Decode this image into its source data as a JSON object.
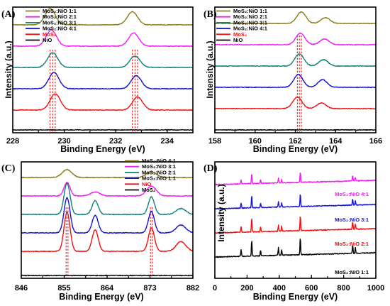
{
  "colors": {
    "olive": "#8B7D1A",
    "magenta": "#F01EF0",
    "teal": "#12807A",
    "blue": "#1414D2",
    "red": "#F01010",
    "black": "#000000",
    "refline": "#E00000"
  },
  "chart_data": [
    {
      "panel": "(A)",
      "type": "line",
      "xlabel": "Binding Energy (eV)",
      "ylabel": "Intensity (a.u.)",
      "xlim": [
        228,
        235
      ],
      "xticks": [
        228,
        230,
        232,
        234
      ],
      "legend_position": "top-left",
      "series": [
        {
          "name": "MoS2:NiO 1:1",
          "color": "olive",
          "peaks": [
            {
              "center": 229.45,
              "height": 1.0
            },
            {
              "center": 232.65,
              "height": 0.8
            }
          ]
        },
        {
          "name": "MoS2:NiO 2:1",
          "color": "magenta",
          "peaks": [
            {
              "center": 229.5,
              "height": 1.0
            },
            {
              "center": 232.7,
              "height": 0.8
            }
          ]
        },
        {
          "name": "MoS2:NiO 3:1",
          "color": "teal",
          "peaks": [
            {
              "center": 229.55,
              "height": 0.9
            },
            {
              "center": 232.75,
              "height": 0.7
            }
          ]
        },
        {
          "name": "MoS2:NiO 4:1",
          "color": "blue",
          "peaks": [
            {
              "center": 229.6,
              "height": 1.0
            },
            {
              "center": 232.8,
              "height": 0.8
            }
          ]
        },
        {
          "name": "MoS2",
          "color": "red",
          "peaks": [
            {
              "center": 229.65,
              "height": 1.0
            },
            {
              "center": 232.85,
              "height": 0.8
            }
          ]
        },
        {
          "name": "NiO",
          "color": "black",
          "peaks": []
        }
      ],
      "ref_lines": [
        229.45,
        229.55,
        229.65,
        232.65,
        232.75,
        232.85
      ]
    },
    {
      "panel": "(B)",
      "type": "line",
      "xlabel": "Binding Energy (eV)",
      "ylabel": "Intensity (a.u.)",
      "xlim": [
        158,
        166
      ],
      "xticks": [
        158,
        160,
        162,
        164,
        166
      ],
      "legend_position": "top-left",
      "series": [
        {
          "name": "MoS2:NiO 1:1",
          "color": "olive",
          "peaks": [
            {
              "center": 162.3,
              "height": 0.9
            },
            {
              "center": 163.5,
              "height": 0.45
            }
          ]
        },
        {
          "name": "MoS2:NiO 2:1",
          "color": "magenta",
          "peaks": [
            {
              "center": 162.25,
              "height": 0.9
            },
            {
              "center": 163.45,
              "height": 0.45
            }
          ]
        },
        {
          "name": "MoS2:NiO 3:1",
          "color": "teal",
          "peaks": [
            {
              "center": 162.2,
              "height": 0.95
            },
            {
              "center": 163.4,
              "height": 0.5
            }
          ]
        },
        {
          "name": "MoS2:NiO 4:1",
          "color": "blue",
          "peaks": [
            {
              "center": 162.15,
              "height": 1.0
            },
            {
              "center": 163.35,
              "height": 0.6
            }
          ]
        },
        {
          "name": "MoS2",
          "color": "red",
          "peaks": [
            {
              "center": 162.1,
              "height": 0.9
            },
            {
              "center": 163.3,
              "height": 0.45
            }
          ]
        },
        {
          "name": "NiO",
          "color": "black",
          "peaks": []
        }
      ],
      "ref_lines": [
        162.1,
        162.2,
        162.3
      ]
    },
    {
      "panel": "(C)",
      "type": "line",
      "xlabel": "Binding Energy (eV)",
      "ylabel": "",
      "xlim": [
        846,
        882
      ],
      "xticks": [
        846,
        855,
        864,
        873,
        882
      ],
      "legend_position": "top-right",
      "series": [
        {
          "name": "MoS2:NiO 4:1",
          "color": "olive",
          "peaks": [
            {
              "center": 855.6,
              "height": 0.2
            },
            {
              "center": 873.3,
              "height": 0.15
            }
          ]
        },
        {
          "name": "MoS2:NiO 3:1",
          "color": "magenta",
          "peaks": [
            {
              "center": 855.6,
              "height": 0.35
            },
            {
              "center": 861.5,
              "height": 0.1
            },
            {
              "center": 873.3,
              "height": 0.25
            }
          ]
        },
        {
          "name": "MoS2:NiO 2:1",
          "color": "teal",
          "peaks": [
            {
              "center": 855.6,
              "height": 0.8
            },
            {
              "center": 861.5,
              "height": 0.35
            },
            {
              "center": 873.3,
              "height": 0.45
            },
            {
              "center": 879.5,
              "height": 0.15
            }
          ]
        },
        {
          "name": "MoS2:NiO 1:1",
          "color": "blue",
          "peaks": [
            {
              "center": 855.6,
              "height": 0.9
            },
            {
              "center": 861.5,
              "height": 0.45
            },
            {
              "center": 873.3,
              "height": 0.55
            },
            {
              "center": 879.5,
              "height": 0.2
            }
          ]
        },
        {
          "name": "NiO",
          "color": "red",
          "peaks": [
            {
              "center": 855.6,
              "height": 1.0
            },
            {
              "center": 861.5,
              "height": 0.55
            },
            {
              "center": 873.3,
              "height": 0.6
            },
            {
              "center": 879.5,
              "height": 0.25
            }
          ]
        },
        {
          "name": "MoS2",
          "color": "black",
          "peaks": []
        }
      ],
      "ref_lines": [
        855.4,
        855.8,
        873.1,
        873.5
      ]
    },
    {
      "panel": "(D)",
      "type": "line",
      "xlabel": "Binding Energy (eV)",
      "ylabel": "Intensity (a.u.)",
      "xlim": [
        0,
        1000
      ],
      "xticks": [
        0,
        200,
        400,
        600,
        800,
        1000
      ],
      "series": [
        {
          "name": "MoS2:NiO 4:1",
          "color": "magenta"
        },
        {
          "name": "MoS2:NiO 3:1",
          "color": "blue"
        },
        {
          "name": "MoS2:NiO 2:1",
          "color": "red"
        },
        {
          "name": "MoS2:NiO 1:1",
          "color": "black"
        }
      ],
      "peaks": [
        {
          "center": 163,
          "height": 0.35
        },
        {
          "center": 229,
          "height": 0.85
        },
        {
          "center": 284,
          "height": 0.3
        },
        {
          "center": 395,
          "height": 0.4
        },
        {
          "center": 415,
          "height": 0.3
        },
        {
          "center": 531,
          "height": 0.9
        },
        {
          "center": 856,
          "height": 0.45
        },
        {
          "center": 873,
          "height": 0.3
        }
      ]
    }
  ]
}
